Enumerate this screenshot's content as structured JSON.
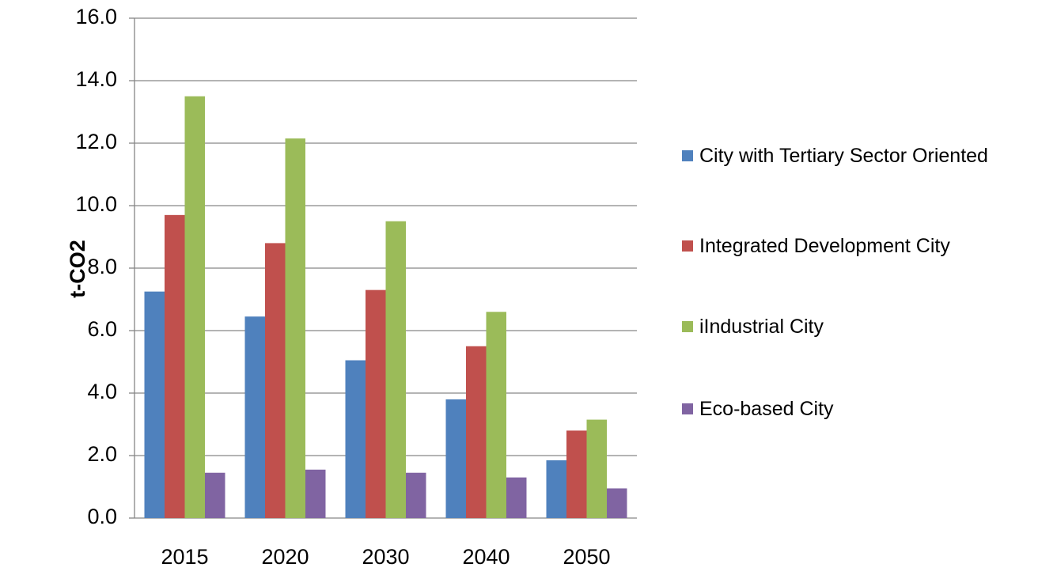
{
  "chart_data": {
    "type": "bar",
    "y_label": "t-CO2",
    "categories": [
      "2015",
      "2020",
      "2030",
      "2040",
      "2050"
    ],
    "series": [
      {
        "name": "City with Tertiary Sector Oriented",
        "color": "#4f81bd",
        "values": [
          7.25,
          6.45,
          5.05,
          3.8,
          1.85
        ]
      },
      {
        "name": "Integrated Development City",
        "color": "#c0504d",
        "values": [
          9.7,
          8.8,
          7.3,
          5.5,
          2.8
        ]
      },
      {
        "name": "iIndustrial City",
        "color": "#9bbb59",
        "values": [
          13.5,
          12.15,
          9.5,
          6.6,
          3.15
        ]
      },
      {
        "name": "Eco-based City",
        "color": "#8064a2",
        "values": [
          1.45,
          1.55,
          1.45,
          1.3,
          0.95
        ]
      }
    ],
    "ylim": [
      0,
      16
    ],
    "yticks": [
      {
        "value": 0,
        "label": "0.0"
      },
      {
        "value": 2,
        "label": "2.0"
      },
      {
        "value": 4,
        "label": "4.0"
      },
      {
        "value": 6,
        "label": "6.0"
      },
      {
        "value": 8,
        "label": "8.0"
      },
      {
        "value": 10,
        "label": "10.0"
      },
      {
        "value": 12,
        "label": "12.0"
      },
      {
        "value": 14,
        "label": "14.0"
      },
      {
        "value": 16,
        "label": "16.0"
      }
    ],
    "grid": true,
    "legend": "right"
  }
}
